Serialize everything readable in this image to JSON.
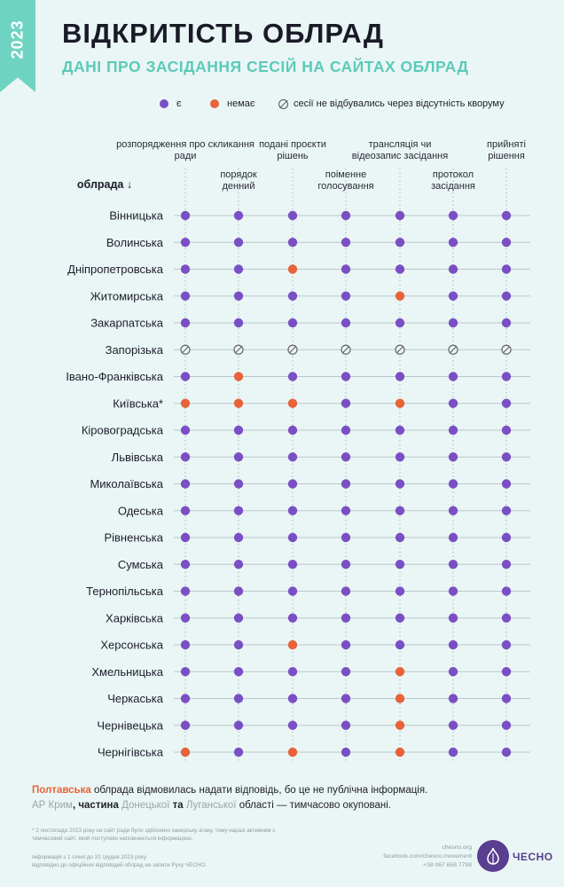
{
  "badge": {
    "year": "2023"
  },
  "header": {
    "title": "ВІДКРИТІСТЬ ОБЛРАД",
    "subtitle": "ДАНІ ПРО ЗАСІДАННЯ СЕСІЙ НА САЙТАХ ОБЛРАД"
  },
  "legend": {
    "yes": "є",
    "no": "немає",
    "na": "сесії не відбувались через відсутність кворуму"
  },
  "colors": {
    "yes": "#7b4fc4",
    "no": "#e8623a",
    "na": "#666666",
    "grid": "#9aa6ab",
    "divider": "#bac8cc"
  },
  "chart_data": {
    "type": "table",
    "row_header": "облрада ↓",
    "columns": [
      "розпорядження про скликання ради",
      "порядок денний",
      "подані проєкти рішень",
      "поіменне голосування",
      "трансляція чи відеозапис засідання",
      "протокол засідання",
      "прийняті рішення"
    ],
    "values_legend": {
      "1": "є",
      "0": "немає",
      "-1": "сесії не відбувались через відсутність кворуму"
    },
    "rows": [
      {
        "name": "Вінницька",
        "values": [
          1,
          1,
          1,
          1,
          1,
          1,
          1
        ]
      },
      {
        "name": "Волинська",
        "values": [
          1,
          1,
          1,
          1,
          1,
          1,
          1
        ]
      },
      {
        "name": "Дніпропетровська",
        "values": [
          1,
          1,
          0,
          1,
          1,
          1,
          1
        ]
      },
      {
        "name": "Житомирська",
        "values": [
          1,
          1,
          1,
          1,
          0,
          1,
          1
        ]
      },
      {
        "name": "Закарпатська",
        "values": [
          1,
          1,
          1,
          1,
          1,
          1,
          1
        ]
      },
      {
        "name": "Запорізька",
        "values": [
          -1,
          -1,
          -1,
          -1,
          -1,
          -1,
          -1
        ]
      },
      {
        "name": "Івано-Франківська",
        "values": [
          1,
          0,
          1,
          1,
          1,
          1,
          1
        ]
      },
      {
        "name": "Київська*",
        "values": [
          0,
          0,
          0,
          1,
          0,
          1,
          1
        ]
      },
      {
        "name": "Кіровоградська",
        "values": [
          1,
          1,
          1,
          1,
          1,
          1,
          1
        ]
      },
      {
        "name": "Львівська",
        "values": [
          1,
          1,
          1,
          1,
          1,
          1,
          1
        ]
      },
      {
        "name": "Миколаївська",
        "values": [
          1,
          1,
          1,
          1,
          1,
          1,
          1
        ]
      },
      {
        "name": "Одеська",
        "values": [
          1,
          1,
          1,
          1,
          1,
          1,
          1
        ]
      },
      {
        "name": "Рівненська",
        "values": [
          1,
          1,
          1,
          1,
          1,
          1,
          1
        ]
      },
      {
        "name": "Сумська",
        "values": [
          1,
          1,
          1,
          1,
          1,
          1,
          1
        ]
      },
      {
        "name": "Тернопільська",
        "values": [
          1,
          1,
          1,
          1,
          1,
          1,
          1
        ]
      },
      {
        "name": "Харківська",
        "values": [
          1,
          1,
          1,
          1,
          1,
          1,
          1
        ]
      },
      {
        "name": "Херсонська",
        "values": [
          1,
          1,
          0,
          1,
          1,
          1,
          1
        ]
      },
      {
        "name": "Хмельницька",
        "values": [
          1,
          1,
          1,
          1,
          0,
          1,
          1
        ]
      },
      {
        "name": "Черкаська",
        "values": [
          1,
          1,
          1,
          1,
          0,
          1,
          1
        ]
      },
      {
        "name": "Чернівецька",
        "values": [
          1,
          1,
          1,
          1,
          0,
          1,
          1
        ]
      },
      {
        "name": "Чернігівська",
        "values": [
          0,
          1,
          0,
          1,
          0,
          1,
          1
        ]
      }
    ]
  },
  "footnote": {
    "poltava": "Полтавська",
    "poltava_rest": " облрада відмовилась надати відповідь, бо це не публічна інформація.",
    "crimea": "АР Крим",
    "part": ", частина ",
    "donetsk": "Донецької",
    "and": " та ",
    "luhansk": "Луганської",
    "rest": " області — тимчасово окуповані."
  },
  "notes": {
    "asterisk": "*  2 листопада 2023 року на сайт ради було здійснено хакерську атаку, тому наразі активним є тимчасовий сайт, який поступово наповнюється інформацією.",
    "info_line1": "Інформація з 1 січня до 31 грудня 2023 року",
    "info_line2": "відповідно до офіційних відповідей облрад на запити Руху ЧЕСНО."
  },
  "contacts": {
    "site": "chesno.org",
    "facebook": "facebook.com/chesno.movement",
    "phone": "+38 067 658 7798",
    "logo": "ЧЕСНО"
  }
}
